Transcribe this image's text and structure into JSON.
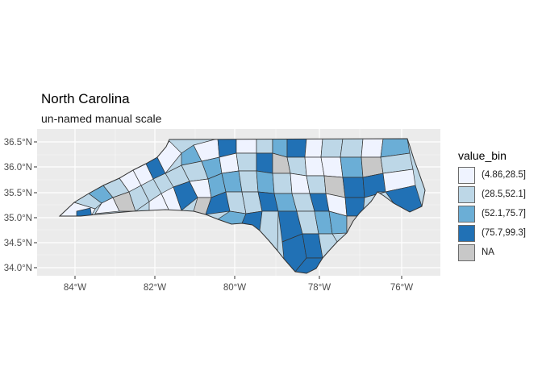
{
  "title": "North Carolina",
  "subtitle": "un-named manual scale",
  "map": {
    "region": "North Carolina counties",
    "background": "#ebebeb",
    "grid_color": "#ffffff",
    "border_color": "#333333",
    "y_ticks": [
      "36.5°N",
      "36.0°N",
      "35.5°N",
      "35.0°N",
      "34.5°N",
      "34.0°N"
    ],
    "x_ticks": [
      "84°W",
      "82°W",
      "80°W",
      "78°W",
      "76°W"
    ]
  },
  "legend": {
    "title": "value_bin",
    "items": [
      {
        "label": "(4.86,28.5]",
        "color": "#eff3ff"
      },
      {
        "label": "(28.5,52.1]",
        "color": "#bdd7e7"
      },
      {
        "label": "(52.1,75.7]",
        "color": "#6baed6"
      },
      {
        "label": "(75.7,99.3]",
        "color": "#2171b5"
      },
      {
        "label": "NA",
        "color": "#c8c8c8"
      }
    ]
  }
}
